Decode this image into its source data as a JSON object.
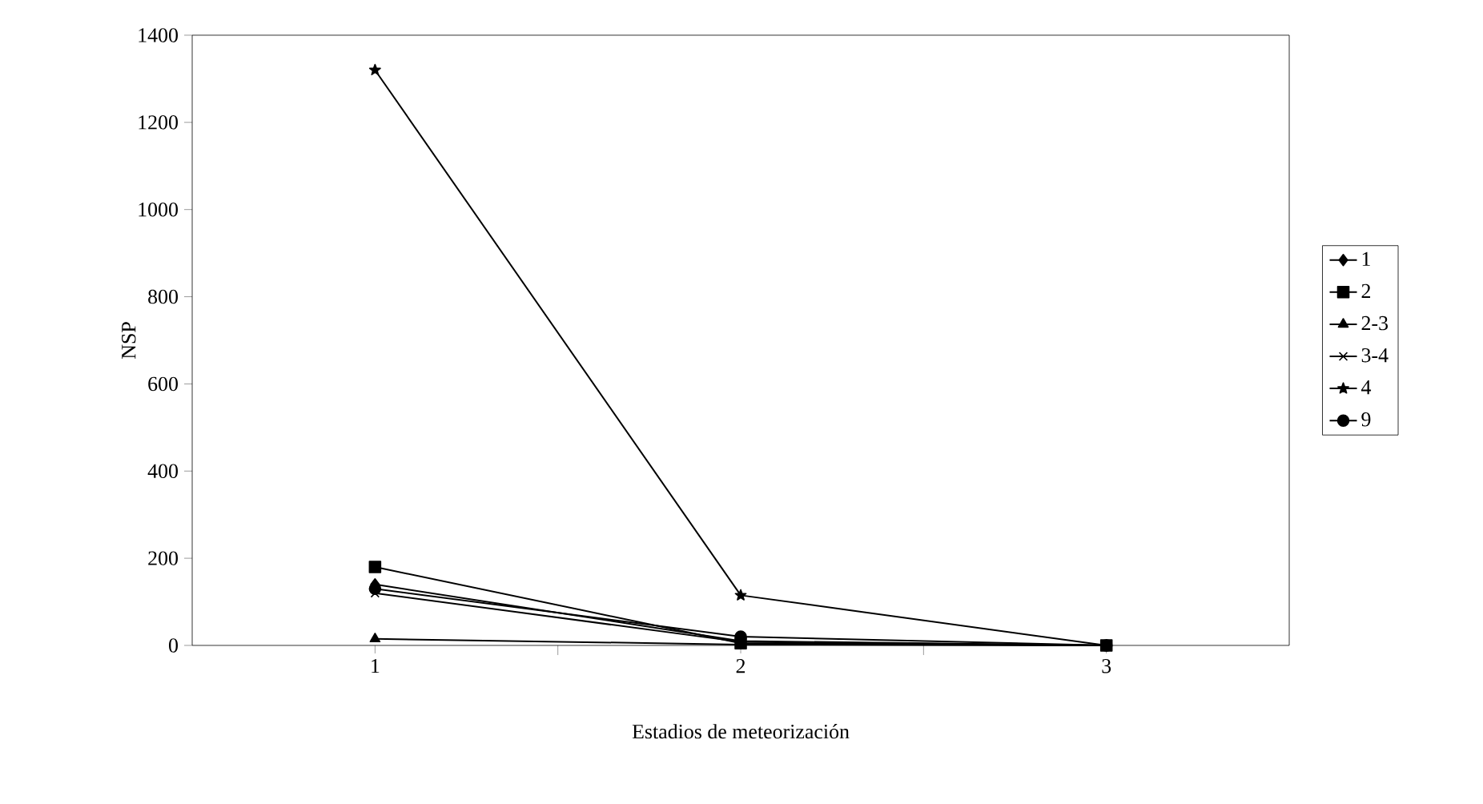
{
  "chart_data": {
    "type": "line",
    "xlabel": "Estadios de meteorización",
    "ylabel": "NSP",
    "categories": [
      "1",
      "2",
      "3"
    ],
    "series": [
      {
        "name": "1",
        "color": "#000000",
        "marker": "diamond",
        "values": [
          140,
          10,
          0
        ]
      },
      {
        "name": "2",
        "color": "#000000",
        "marker": "square",
        "values": [
          180,
          5,
          0
        ]
      },
      {
        "name": "2-3",
        "color": "#000000",
        "marker": "triangle",
        "values": [
          15,
          2,
          0
        ]
      },
      {
        "name": "3-4",
        "color": "#000000",
        "marker": "cross",
        "values": [
          120,
          8,
          0
        ]
      },
      {
        "name": "4",
        "color": "#000000",
        "marker": "star",
        "values": [
          1320,
          115,
          0
        ]
      },
      {
        "name": "9",
        "color": "#000000",
        "marker": "circle",
        "values": [
          130,
          20,
          0
        ]
      }
    ],
    "ylim": [
      0,
      1400
    ],
    "yticks": [
      0,
      200,
      400,
      600,
      800,
      1000,
      1200,
      1400
    ],
    "grid": false,
    "legend": "right",
    "line_style": "solid"
  }
}
